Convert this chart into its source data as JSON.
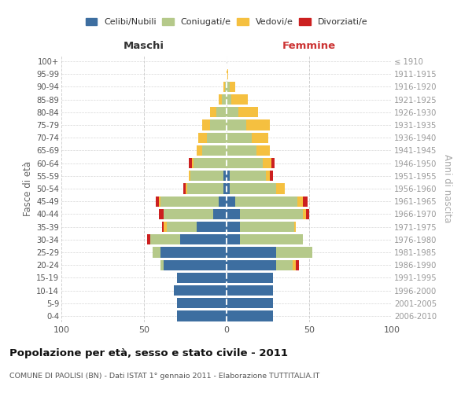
{
  "age_groups": [
    "0-4",
    "5-9",
    "10-14",
    "15-19",
    "20-24",
    "25-29",
    "30-34",
    "35-39",
    "40-44",
    "45-49",
    "50-54",
    "55-59",
    "60-64",
    "65-69",
    "70-74",
    "75-79",
    "80-84",
    "85-89",
    "90-94",
    "95-99",
    "100+"
  ],
  "birth_years": [
    "2006-2010",
    "2001-2005",
    "1996-2000",
    "1991-1995",
    "1986-1990",
    "1981-1985",
    "1976-1980",
    "1971-1975",
    "1966-1970",
    "1961-1965",
    "1956-1960",
    "1951-1955",
    "1946-1950",
    "1941-1945",
    "1936-1940",
    "1931-1935",
    "1926-1930",
    "1921-1925",
    "1916-1920",
    "1911-1915",
    "≤ 1910"
  ],
  "maschi": {
    "celibi": [
      30,
      30,
      32,
      30,
      38,
      40,
      28,
      18,
      8,
      5,
      2,
      2,
      0,
      0,
      0,
      0,
      0,
      0,
      0,
      0,
      0
    ],
    "coniugati": [
      0,
      0,
      0,
      0,
      2,
      5,
      18,
      18,
      30,
      35,
      22,
      20,
      20,
      15,
      12,
      10,
      6,
      3,
      1,
      0,
      0
    ],
    "vedovi": [
      0,
      0,
      0,
      0,
      0,
      0,
      0,
      2,
      0,
      1,
      1,
      1,
      1,
      3,
      5,
      5,
      4,
      2,
      1,
      0,
      0
    ],
    "divorziati": [
      0,
      0,
      0,
      0,
      0,
      0,
      2,
      1,
      3,
      2,
      1,
      0,
      2,
      0,
      0,
      0,
      0,
      0,
      0,
      0,
      0
    ]
  },
  "femmine": {
    "nubili": [
      28,
      28,
      28,
      28,
      30,
      30,
      8,
      8,
      8,
      5,
      2,
      2,
      0,
      0,
      0,
      0,
      0,
      0,
      0,
      0,
      0
    ],
    "coniugate": [
      0,
      0,
      0,
      0,
      10,
      22,
      38,
      33,
      38,
      38,
      28,
      22,
      22,
      18,
      15,
      12,
      7,
      3,
      2,
      0,
      0
    ],
    "vedove": [
      0,
      0,
      0,
      0,
      2,
      0,
      0,
      1,
      2,
      3,
      5,
      2,
      5,
      8,
      10,
      14,
      12,
      10,
      3,
      1,
      0
    ],
    "divorziate": [
      0,
      0,
      0,
      0,
      2,
      0,
      0,
      0,
      2,
      3,
      0,
      2,
      2,
      0,
      0,
      0,
      0,
      0,
      0,
      0,
      0
    ]
  },
  "colors": {
    "celibi_nubili": "#3d6ea0",
    "coniugati": "#b5c98a",
    "vedovi": "#f5c040",
    "divorziati": "#cc2020"
  },
  "xlim": 100,
  "title": "Popolazione per età, sesso e stato civile - 2011",
  "subtitle": "COMUNE DI PAOLISI (BN) - Dati ISTAT 1° gennaio 2011 - Elaborazione TUTTITALIA.IT",
  "ylabel_left": "Fasce di età",
  "ylabel_right": "Anni di nascita",
  "xlabel_maschi": "Maschi",
  "xlabel_femmine": "Femmine",
  "bg_color": "#ffffff",
  "grid_color": "#cccccc",
  "legend_labels": [
    "Celibi/Nubili",
    "Coniugati/e",
    "Vedovi/e",
    "Divorziati/e"
  ]
}
